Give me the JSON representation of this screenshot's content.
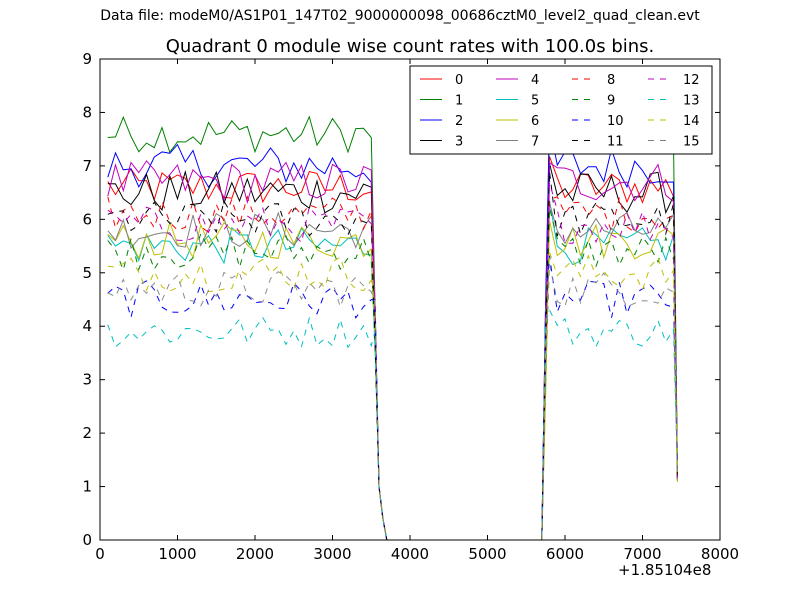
{
  "suptitle": "Data file: modeM0/AS1P01_147T02_9000000098_00686cztM0_level2_quad_clean.evt",
  "chart_data": {
    "type": "line",
    "title": "Quadrant 0 module wise count rates with 100.0s bins.",
    "xlabel": "",
    "ylabel": "",
    "x_offset_label": "+1.85104e8",
    "xlim": [
      0,
      8000
    ],
    "ylim": [
      0,
      9
    ],
    "xticks": [
      "0",
      "1000",
      "2000",
      "3000",
      "4000",
      "5000",
      "6000",
      "7000",
      "8000"
    ],
    "yticks": [
      "0",
      "1",
      "2",
      "3",
      "4",
      "5",
      "6",
      "7",
      "8",
      "9"
    ],
    "grid": false,
    "legend_position": "top-right",
    "legend_columns": 4,
    "segments": [
      {
        "x_start": 100,
        "x_end": 3500,
        "step": 100
      },
      {
        "x_start": 5800,
        "x_end": 7400,
        "step": 100
      }
    ],
    "gap_points": [
      [
        3550,
        4.0
      ],
      [
        3600,
        1.0
      ],
      [
        3650,
        0.4
      ],
      [
        3700,
        0
      ],
      [
        5700,
        0
      ],
      [
        5750,
        2.5
      ]
    ],
    "end_points": [
      [
        7450,
        1.2
      ]
    ],
    "series": [
      {
        "name": "0",
        "color": "#ff0000",
        "dash": "solid",
        "level": 6.6,
        "amp": 0.35
      },
      {
        "name": "1",
        "color": "#008000",
        "dash": "solid",
        "level": 7.6,
        "amp": 0.35
      },
      {
        "name": "2",
        "color": "#0000ff",
        "dash": "solid",
        "level": 7.0,
        "amp": 0.4
      },
      {
        "name": "3",
        "color": "#000000",
        "dash": "solid",
        "level": 6.5,
        "amp": 0.4
      },
      {
        "name": "4",
        "color": "#bf00bf",
        "dash": "solid",
        "level": 6.7,
        "amp": 0.4
      },
      {
        "name": "5",
        "color": "#00bfbf",
        "dash": "solid",
        "level": 5.5,
        "amp": 0.35
      },
      {
        "name": "6",
        "color": "#bfbf00",
        "dash": "solid",
        "level": 5.6,
        "amp": 0.35
      },
      {
        "name": "7",
        "color": "#808080",
        "dash": "solid",
        "level": 5.8,
        "amp": 0.35
      },
      {
        "name": "8",
        "color": "#ff0000",
        "dash": "dashed",
        "level": 6.1,
        "amp": 0.35
      },
      {
        "name": "9",
        "color": "#008000",
        "dash": "dashed",
        "level": 5.4,
        "amp": 0.35
      },
      {
        "name": "10",
        "color": "#0000ff",
        "dash": "dashed",
        "level": 4.5,
        "amp": 0.35
      },
      {
        "name": "11",
        "color": "#000000",
        "dash": "dashed",
        "level": 6.0,
        "amp": 0.35
      },
      {
        "name": "12",
        "color": "#bf00bf",
        "dash": "dashed",
        "level": 5.9,
        "amp": 0.35
      },
      {
        "name": "13",
        "color": "#00bfbf",
        "dash": "dashed",
        "level": 3.9,
        "amp": 0.3
      },
      {
        "name": "14",
        "color": "#bfbf00",
        "dash": "dashed",
        "level": 5.0,
        "amp": 0.35
      },
      {
        "name": "15",
        "color": "#808080",
        "dash": "dashed",
        "level": 4.7,
        "amp": 0.35
      }
    ]
  }
}
